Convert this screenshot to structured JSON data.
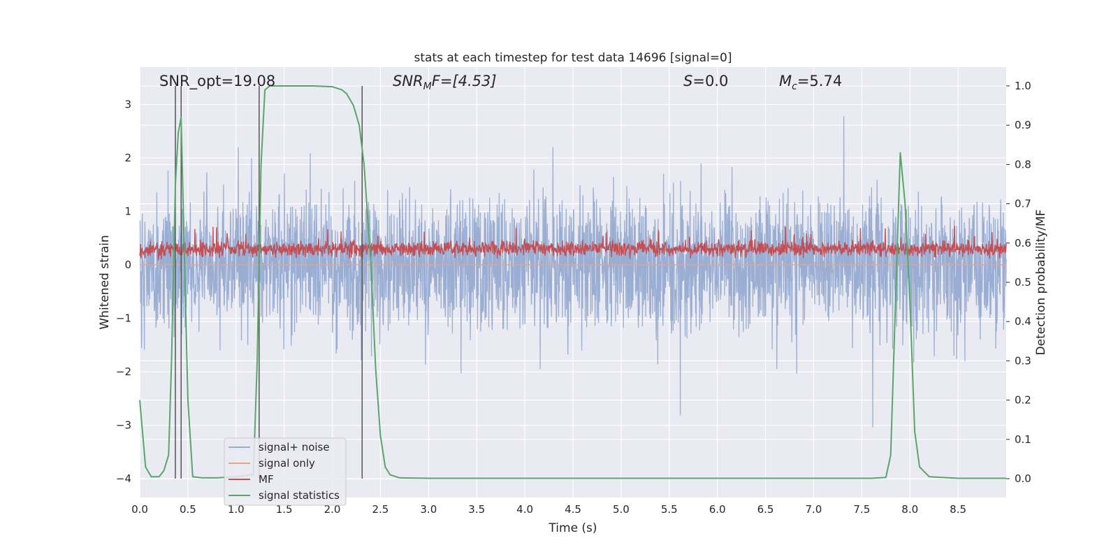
{
  "chart_data": {
    "type": "line",
    "title": "stats at each timestep for test data 14696 [signal=0]",
    "xlabel": "Time (s)",
    "ylabel_left": "Whitened strain",
    "ylabel_right": "Detection probability/MF",
    "xlim": [
      0,
      9
    ],
    "ylim_left": [
      -4.35,
      3.7
    ],
    "ylim_right": [
      -0.048,
      1.048
    ],
    "x_ticks": [
      0.0,
      0.5,
      1.0,
      1.5,
      2.0,
      2.5,
      3.0,
      3.5,
      4.0,
      4.5,
      5.0,
      5.5,
      6.0,
      6.5,
      7.0,
      7.5,
      8.0,
      8.5
    ],
    "x_tick_labels": [
      "0.0",
      "0.5",
      "1.0",
      "1.5",
      "2.0",
      "2.5",
      "3.0",
      "3.5",
      "4.0",
      "4.5",
      "5.0",
      "5.5",
      "6.0",
      "6.5",
      "7.0",
      "7.5",
      "8.0",
      "8.5"
    ],
    "y_left_ticks": [
      3,
      2,
      1,
      0,
      -1,
      -2,
      -3,
      -4
    ],
    "y_left_tick_labels": [
      "3",
      "2",
      "1",
      "0",
      "−1",
      "−2",
      "−3",
      "−4"
    ],
    "y_right_ticks": [
      1.0,
      0.9,
      0.8,
      0.7,
      0.6,
      0.5,
      0.4,
      0.3,
      0.2,
      0.1,
      0.0
    ],
    "y_right_tick_labels": [
      "1.0",
      "0.9",
      "0.8",
      "0.7",
      "0.6",
      "0.5",
      "0.4",
      "0.3",
      "0.2",
      "0.1",
      "0.0"
    ],
    "grid": true,
    "legend_position": "lower-left",
    "annotations": {
      "snr_opt": "SNR_opt=19.08",
      "snr_mf_base": "SNR",
      "snr_mf_sub": "M",
      "snr_mf_rest": "F=[4.53]",
      "s_var": "S",
      "s_rest": "=0.0",
      "mc_var": "M",
      "mc_sub": "c",
      "mc_rest": "=5.74"
    },
    "vertical_lines": [
      0.37,
      0.43,
      1.24,
      2.31
    ],
    "series": [
      {
        "name": "signal+ noise",
        "color": "#9aaed3",
        "typical_range": [
          -2.3,
          2.3
        ],
        "extreme_range": [
          -3.8,
          3.3
        ],
        "description_values": "dense whitened-noise trace spanning approx. -2.3 to 2.3 with spikes to about 3.3"
      },
      {
        "name": "signal only",
        "color": "#e8a38a",
        "x": [
          0,
          9
        ],
        "y": [
          0,
          0
        ]
      },
      {
        "name": "MF",
        "color": "#c44e52",
        "typical_range": [
          0.05,
          0.55
        ],
        "extreme_range": [
          0.0,
          0.98
        ]
      },
      {
        "name": "signal statistics",
        "color": "#55a868",
        "axis": "right",
        "x": [
          0.0,
          0.06,
          0.12,
          0.2,
          0.25,
          0.3,
          0.33,
          0.37,
          0.4,
          0.43,
          0.46,
          0.5,
          0.55,
          0.65,
          0.8,
          1.0,
          1.18,
          1.22,
          1.26,
          1.3,
          1.35,
          1.5,
          1.8,
          2.0,
          2.1,
          2.15,
          2.22,
          2.28,
          2.33,
          2.4,
          2.45,
          2.5,
          2.55,
          2.6,
          2.7,
          3.0,
          4.0,
          5.0,
          6.0,
          7.0,
          7.6,
          7.75,
          7.8,
          7.85,
          7.9,
          7.95,
          8.0,
          8.05,
          8.1,
          8.2,
          8.5,
          9.0
        ],
        "y": [
          0.2,
          0.03,
          0.005,
          0.005,
          0.02,
          0.06,
          0.3,
          0.75,
          0.88,
          0.92,
          0.6,
          0.2,
          0.005,
          0.002,
          0.002,
          0.005,
          0.01,
          0.3,
          0.8,
          0.99,
          1.0,
          1.0,
          1.0,
          0.998,
          0.99,
          0.98,
          0.95,
          0.9,
          0.8,
          0.55,
          0.28,
          0.11,
          0.03,
          0.01,
          0.002,
          0.001,
          0.001,
          0.001,
          0.001,
          0.001,
          0.001,
          0.003,
          0.06,
          0.45,
          0.83,
          0.7,
          0.45,
          0.12,
          0.03,
          0.005,
          0.001,
          0.001
        ]
      }
    ]
  }
}
